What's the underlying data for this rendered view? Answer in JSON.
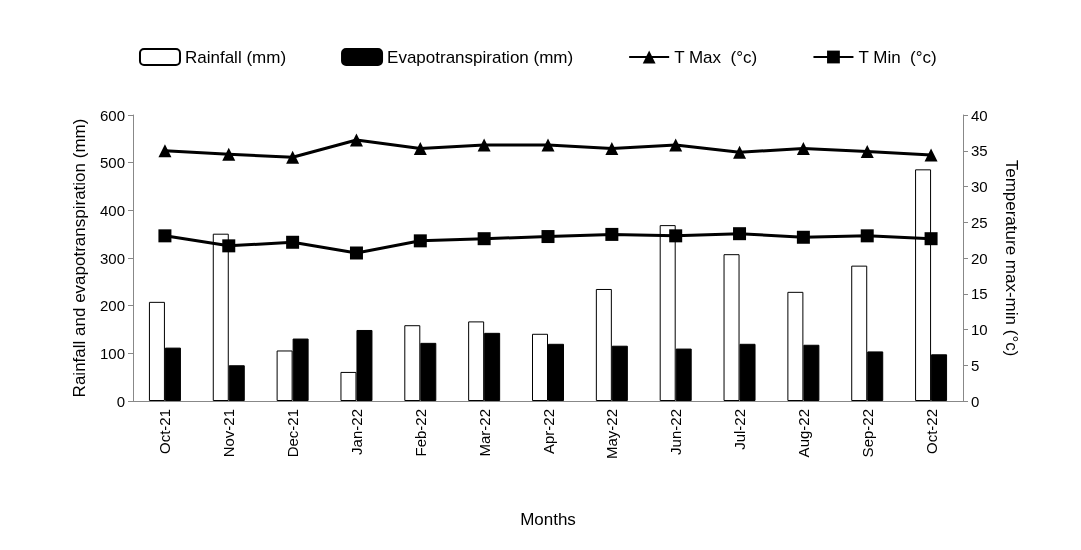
{
  "chart_data": {
    "type": "bar",
    "xlabel": "Months",
    "ylabel": "Rainfall and evapotranspiration (mm)",
    "y2label": "Temperature max-min (°c)",
    "categories": [
      "Oct-21",
      "Nov-21",
      "Dec-21",
      "Jan-22",
      "Feb-22",
      "Mar-22",
      "Apr-22",
      "May-22",
      "Jun-22",
      "Jul-22",
      "Aug-22",
      "Sep-22",
      "Oct-22"
    ],
    "series": [
      {
        "name": "Rainfall (mm)",
        "type": "bar",
        "color": "#ffffff",
        "values": [
          208,
          351,
          106,
          61,
          159,
          167,
          141,
          235,
          369,
          308,
          229,
          284,
          486
        ]
      },
      {
        "name": "Evapotranspiration (mm)",
        "type": "bar",
        "color": "#000000",
        "values": [
          112,
          75,
          131,
          149,
          122,
          143,
          120,
          116,
          110,
          120,
          118,
          104,
          98
        ]
      },
      {
        "name": "T Max  (°c)",
        "type": "line",
        "axis": "y2",
        "marker": "triangle",
        "color": "#000000",
        "values": [
          35.0,
          34.5,
          34.1,
          36.5,
          35.3,
          35.8,
          35.8,
          35.3,
          35.8,
          34.8,
          35.3,
          34.9,
          34.4
        ]
      },
      {
        "name": "T Min  (°c)",
        "type": "line",
        "axis": "y2",
        "marker": "square",
        "color": "#000000",
        "values": [
          23.1,
          21.7,
          22.2,
          20.7,
          22.4,
          22.7,
          23.0,
          23.3,
          23.1,
          23.4,
          22.9,
          23.1,
          22.7
        ]
      }
    ],
    "ylim": [
      0,
      600
    ],
    "yticks": [
      0,
      100,
      200,
      300,
      400,
      500,
      600
    ],
    "y2lim": [
      0,
      40
    ],
    "y2ticks": [
      0,
      5,
      10,
      15,
      20,
      25,
      30,
      35,
      40
    ],
    "legend": "top",
    "grid": false,
    "line_style": "solid"
  }
}
